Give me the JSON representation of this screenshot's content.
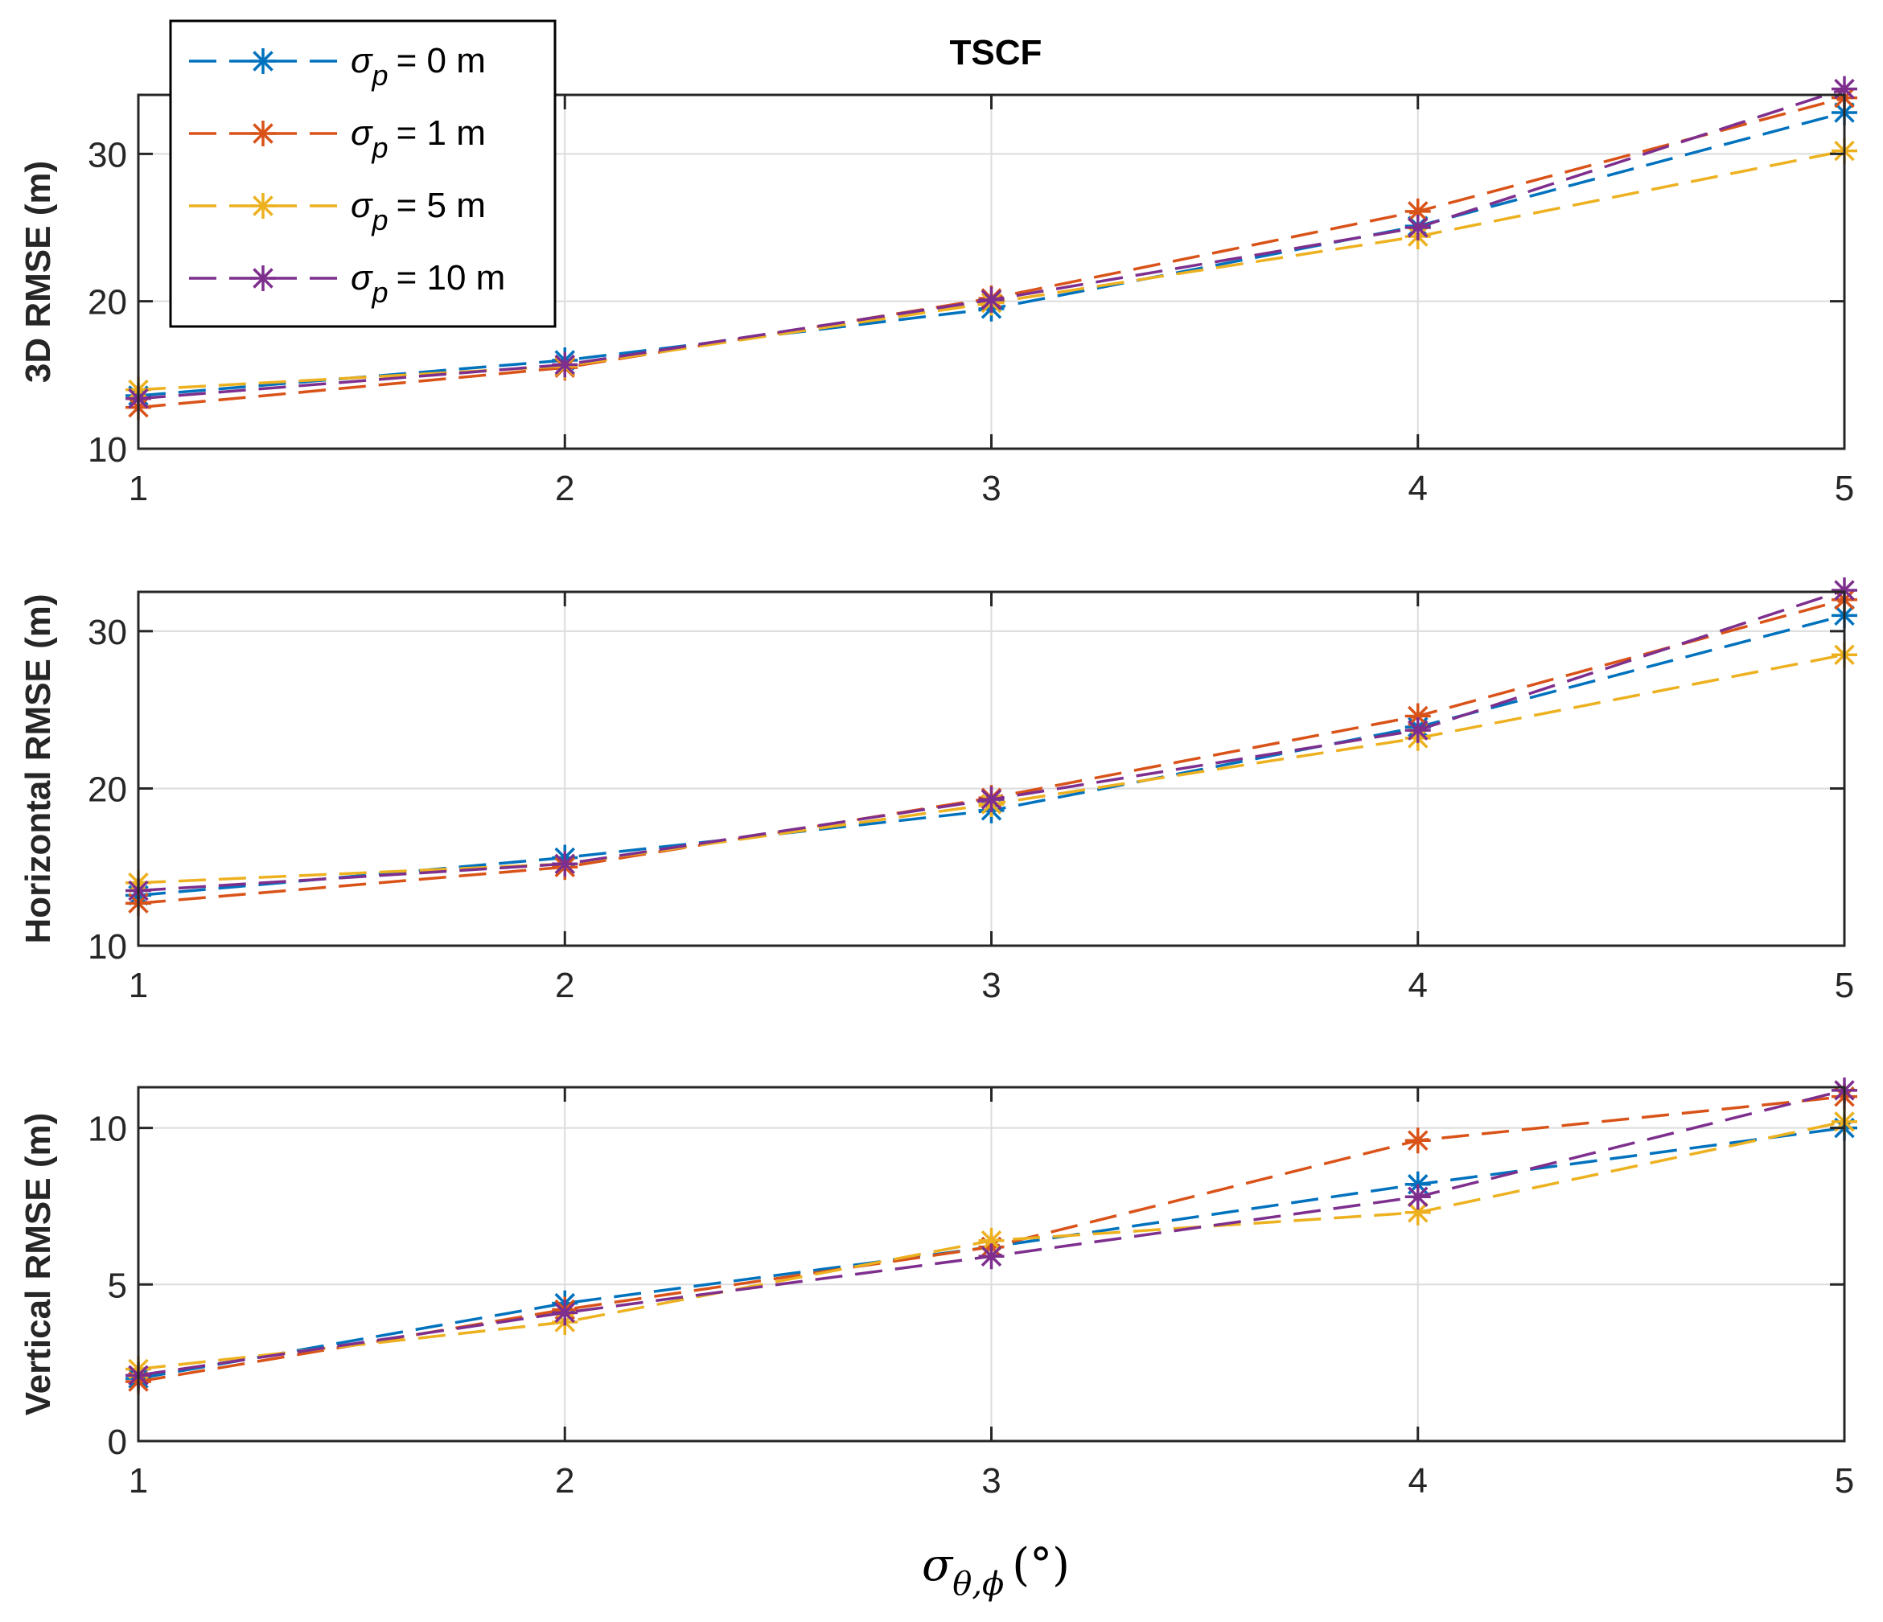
{
  "chart_data": {
    "type": "line",
    "title": "TSCF",
    "xlabel_symbol": "σ",
    "xlabel_sub": "θ,ϕ",
    "xlabel_unit": "(°)",
    "x": [
      1,
      2,
      3,
      4,
      5
    ],
    "xticks": [
      "1",
      "2",
      "3",
      "4",
      "5"
    ],
    "legend": {
      "position": "top-left",
      "symbol": "σ",
      "sub": "p",
      "entries": [
        {
          "name": "= 0 m",
          "color": "#0072BD"
        },
        {
          "name": "= 1 m",
          "color": "#D95319"
        },
        {
          "name": "= 5 m",
          "color": "#EDB120"
        },
        {
          "name": "= 10 m",
          "color": "#7E2F8E"
        }
      ]
    },
    "panels": [
      {
        "ylabel": "3D RMSE (m)",
        "ylim": [
          10,
          34
        ],
        "yticks": [
          10,
          20,
          30
        ],
        "yticklabels": [
          "10",
          "20",
          "30"
        ],
        "series": [
          {
            "name": "σp = 0 m",
            "color": "#0072BD",
            "values": [
              13.6,
              16.0,
              19.5,
              25.1,
              32.8
            ]
          },
          {
            "name": "σp = 1 m",
            "color": "#D95319",
            "values": [
              12.8,
              15.5,
              20.2,
              26.1,
              33.8
            ]
          },
          {
            "name": "σp = 5 m",
            "color": "#EDB120",
            "values": [
              14.0,
              15.6,
              19.9,
              24.4,
              30.2
            ]
          },
          {
            "name": "σp = 10 m",
            "color": "#7E2F8E",
            "values": [
              13.4,
              15.7,
              20.1,
              25.0,
              34.4
            ]
          }
        ]
      },
      {
        "ylabel": "Horizontal RMSE (m)",
        "ylim": [
          10,
          32.5
        ],
        "yticks": [
          10,
          20,
          30
        ],
        "yticklabels": [
          "10",
          "20",
          "30"
        ],
        "series": [
          {
            "name": "σp = 0 m",
            "color": "#0072BD",
            "values": [
              13.2,
              15.6,
              18.6,
              23.9,
              31.0
            ]
          },
          {
            "name": "σp = 1 m",
            "color": "#D95319",
            "values": [
              12.7,
              15.0,
              19.4,
              24.6,
              32.0
            ]
          },
          {
            "name": "σp = 5 m",
            "color": "#EDB120",
            "values": [
              14.0,
              15.2,
              19.0,
              23.2,
              28.5
            ]
          },
          {
            "name": "σp = 10 m",
            "color": "#7E2F8E",
            "values": [
              13.5,
              15.2,
              19.3,
              23.7,
              32.6
            ]
          }
        ]
      },
      {
        "ylabel": "Vertical RMSE (m)",
        "ylim": [
          0,
          11.3
        ],
        "yticks": [
          0,
          5,
          10
        ],
        "yticklabels": [
          "0",
          "5",
          "10"
        ],
        "series": [
          {
            "name": "σp = 0 m",
            "color": "#0072BD",
            "values": [
              2.0,
              4.4,
              6.2,
              8.2,
              10.0
            ]
          },
          {
            "name": "σp = 1 m",
            "color": "#D95319",
            "values": [
              1.9,
              4.2,
              6.2,
              9.6,
              11.0
            ]
          },
          {
            "name": "σp = 5 m",
            "color": "#EDB120",
            "values": [
              2.3,
              3.8,
              6.4,
              7.3,
              10.2
            ]
          },
          {
            "name": "σp = 10 m",
            "color": "#7E2F8E",
            "values": [
              2.1,
              4.1,
              5.9,
              7.8,
              11.2
            ]
          }
        ]
      }
    ]
  }
}
